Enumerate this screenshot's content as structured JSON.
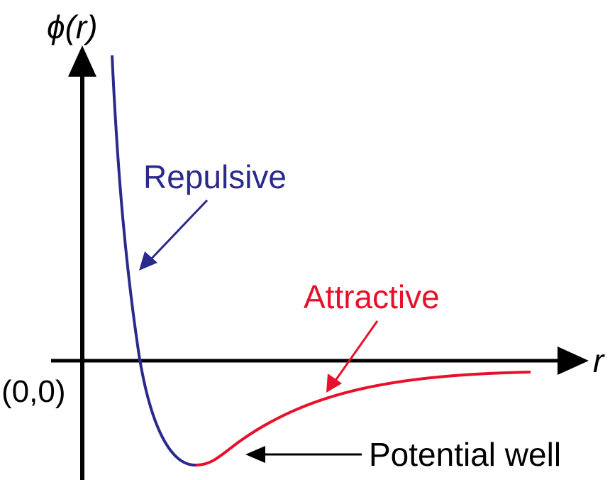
{
  "axes": {
    "y_label": "ϕ(r)",
    "x_label": "r",
    "origin_label": "(0,0)"
  },
  "annotations": {
    "repulsive": "Repulsive",
    "attractive": "Attractive",
    "potential_well": "Potential well"
  },
  "colors": {
    "repulsive": "#2a2a8c",
    "attractive": "#e8102a",
    "axis": "#000000"
  }
}
